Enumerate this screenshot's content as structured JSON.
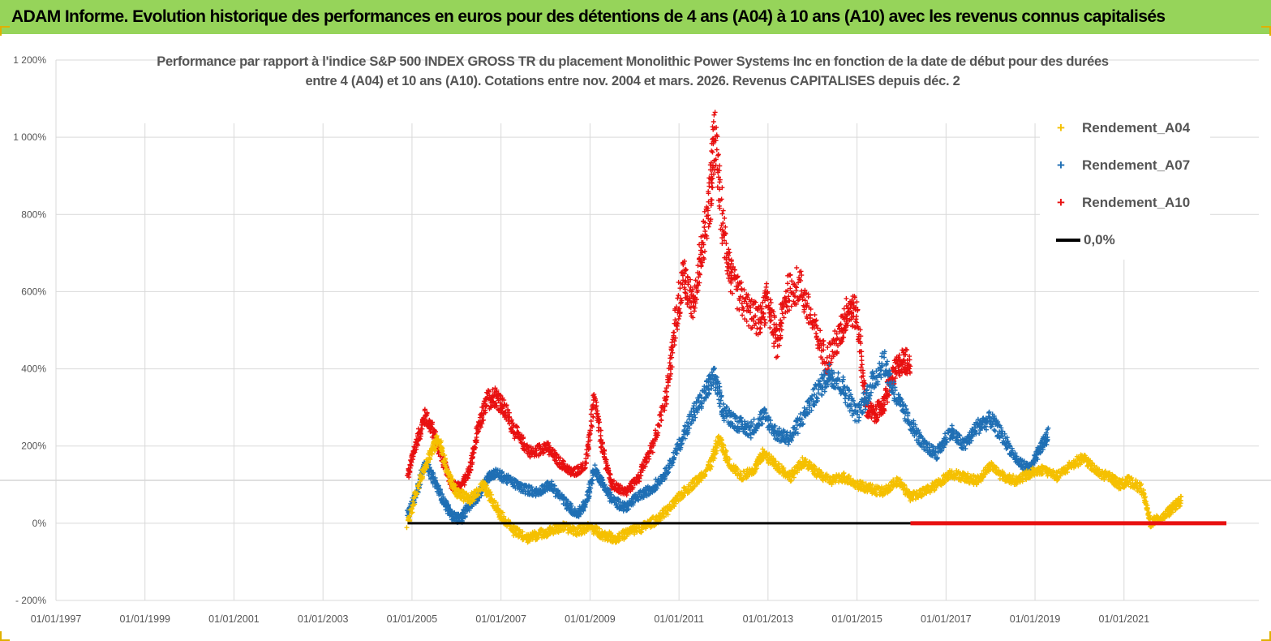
{
  "banner": {
    "title": "ADAM Informe. Evolution historique des performances en euros pour des détentions de 4 ans (A04) à 10 ans (A10) avec les revenus connus capitalisés"
  },
  "chart_data": {
    "type": "scatter",
    "title_lines": [
      "Performance par rapport à l'indice S&P 500 INDEX GROSS TR  du placement Monolithic Power Systems Inc en fonction de la date de début pour des durées",
      "entre 4 (A04) et 10 ans (A10).  Cotations entre nov. 2004 et mars. 2026. Revenus CAPITALISES depuis déc. 2"
    ],
    "xlabel": "",
    "ylabel": "",
    "xlim": [
      1997.0,
      2023.3
    ],
    "ylim": [
      -200,
      1200
    ],
    "x_ticks": [
      "01/01/1997",
      "01/01/1999",
      "01/01/2001",
      "01/01/2003",
      "01/01/2005",
      "01/01/2007",
      "01/01/2009",
      "01/01/2011",
      "01/01/2013",
      "01/01/2015",
      "01/01/2017",
      "01/01/2019",
      "01/01/2021"
    ],
    "y_ticks": [
      "- 200%",
      "0%",
      "200%",
      "400%",
      "600%",
      "800%",
      "1 000%",
      "1 200%"
    ],
    "grid": true,
    "legend_position": "top-right",
    "series": [
      {
        "name": "Rendement_A04",
        "color": "#f5c000",
        "x": [
          2004.9,
          2005.2,
          2005.4,
          2005.6,
          2005.8,
          2006.0,
          2006.3,
          2006.6,
          2006.8,
          2007.0,
          2007.3,
          2007.6,
          2007.8,
          2008.1,
          2008.4,
          2008.7,
          2009.0,
          2009.3,
          2009.6,
          2009.9,
          2010.2,
          2010.5,
          2010.8,
          2011.1,
          2011.4,
          2011.7,
          2011.9,
          2012.1,
          2012.4,
          2012.7,
          2012.9,
          2013.2,
          2013.5,
          2013.8,
          2014.1,
          2014.4,
          2014.7,
          2015.0,
          2015.3,
          2015.6,
          2015.9,
          2016.2,
          2016.5,
          2016.8,
          2017.1,
          2017.4,
          2017.7,
          2018.0,
          2018.3,
          2018.6,
          2018.9,
          2019.2,
          2019.5,
          2019.8,
          2020.1,
          2020.4,
          2020.7,
          2020.9,
          2021.1,
          2021.4,
          2021.6,
          2021.9,
          2022.1,
          2022.3
        ],
        "values": [
          0,
          120,
          180,
          220,
          130,
          80,
          60,
          100,
          60,
          20,
          -20,
          -40,
          -30,
          -20,
          -10,
          -20,
          -10,
          -30,
          -40,
          -20,
          -10,
          10,
          40,
          80,
          110,
          150,
          220,
          160,
          120,
          140,
          180,
          150,
          120,
          160,
          130,
          110,
          120,
          100,
          90,
          80,
          110,
          70,
          80,
          100,
          130,
          120,
          110,
          150,
          120,
          110,
          130,
          140,
          120,
          150,
          170,
          130,
          120,
          100,
          110,
          90,
          0,
          20,
          40,
          60
        ]
      },
      {
        "name": "Rendement_A07",
        "color": "#1f6fb4",
        "x": [
          2004.9,
          2005.1,
          2005.3,
          2005.5,
          2005.7,
          2005.9,
          2006.1,
          2006.3,
          2006.5,
          2006.7,
          2006.9,
          2007.2,
          2007.5,
          2007.8,
          2008.1,
          2008.4,
          2008.7,
          2008.9,
          2009.1,
          2009.3,
          2009.5,
          2009.8,
          2010.1,
          2010.4,
          2010.7,
          2011.0,
          2011.3,
          2011.6,
          2011.8,
          2012.0,
          2012.3,
          2012.6,
          2012.9,
          2013.2,
          2013.5,
          2013.8,
          2014.1,
          2014.4,
          2014.7,
          2015.0,
          2015.3,
          2015.6,
          2015.9,
          2016.2,
          2016.5,
          2016.8,
          2017.1,
          2017.4,
          2017.7,
          2018.0,
          2018.3,
          2018.6,
          2018.9,
          2019.1,
          2019.3
        ],
        "values": [
          20,
          80,
          160,
          110,
          60,
          20,
          10,
          50,
          70,
          120,
          130,
          110,
          90,
          80,
          100,
          60,
          20,
          50,
          140,
          100,
          60,
          40,
          70,
          90,
          130,
          200,
          280,
          340,
          380,
          290,
          260,
          240,
          280,
          230,
          220,
          280,
          340,
          390,
          350,
          280,
          350,
          420,
          320,
          260,
          200,
          180,
          240,
          200,
          250,
          270,
          220,
          160,
          140,
          190,
          230
        ]
      },
      {
        "name": "Rendement_A10",
        "color": "#e81010",
        "x": [
          2004.9,
          2005.1,
          2005.3,
          2005.5,
          2005.7,
          2005.9,
          2006.1,
          2006.3,
          2006.5,
          2006.7,
          2006.9,
          2007.1,
          2007.4,
          2007.7,
          2008.0,
          2008.3,
          2008.6,
          2008.9,
          2009.1,
          2009.3,
          2009.5,
          2009.8,
          2010.1,
          2010.4,
          2010.7,
          2010.9,
          2011.1,
          2011.3,
          2011.5,
          2011.7,
          2011.8,
          2012.0,
          2012.2,
          2012.5,
          2012.8,
          2013.0,
          2013.2,
          2013.4,
          2013.7,
          2014.0,
          2014.3,
          2014.6,
          2014.8,
          2015.0,
          2015.2,
          2015.4,
          2015.6,
          2015.8,
          2016.0,
          2016.2
        ],
        "values": [
          120,
          210,
          280,
          230,
          160,
          100,
          90,
          140,
          250,
          320,
          330,
          290,
          220,
          180,
          200,
          160,
          130,
          150,
          320,
          180,
          100,
          80,
          120,
          200,
          320,
          500,
          650,
          560,
          700,
          850,
          1000,
          750,
          620,
          560,
          520,
          580,
          460,
          590,
          620,
          520,
          420,
          480,
          560,
          540,
          300,
          280,
          310,
          380,
          420,
          420
        ]
      },
      {
        "name": "0,0%",
        "color": "#000000",
        "x": [
          2004.9,
          2016.2
        ],
        "values": [
          0,
          0
        ]
      },
      {
        "name": "zero_red",
        "color": "#e81010",
        "x": [
          2016.2,
          2023.3
        ],
        "values": [
          0,
          0
        ]
      }
    ],
    "legend": [
      {
        "label": "Rendement_A04",
        "color": "#f5c000",
        "marker": "+"
      },
      {
        "label": "Rendement_A07",
        "color": "#1f6fb4",
        "marker": "+"
      },
      {
        "label": "Rendement_A10",
        "color": "#e81010",
        "marker": "+"
      },
      {
        "label": "0,0%",
        "color": "#000000",
        "marker": "line"
      }
    ]
  }
}
